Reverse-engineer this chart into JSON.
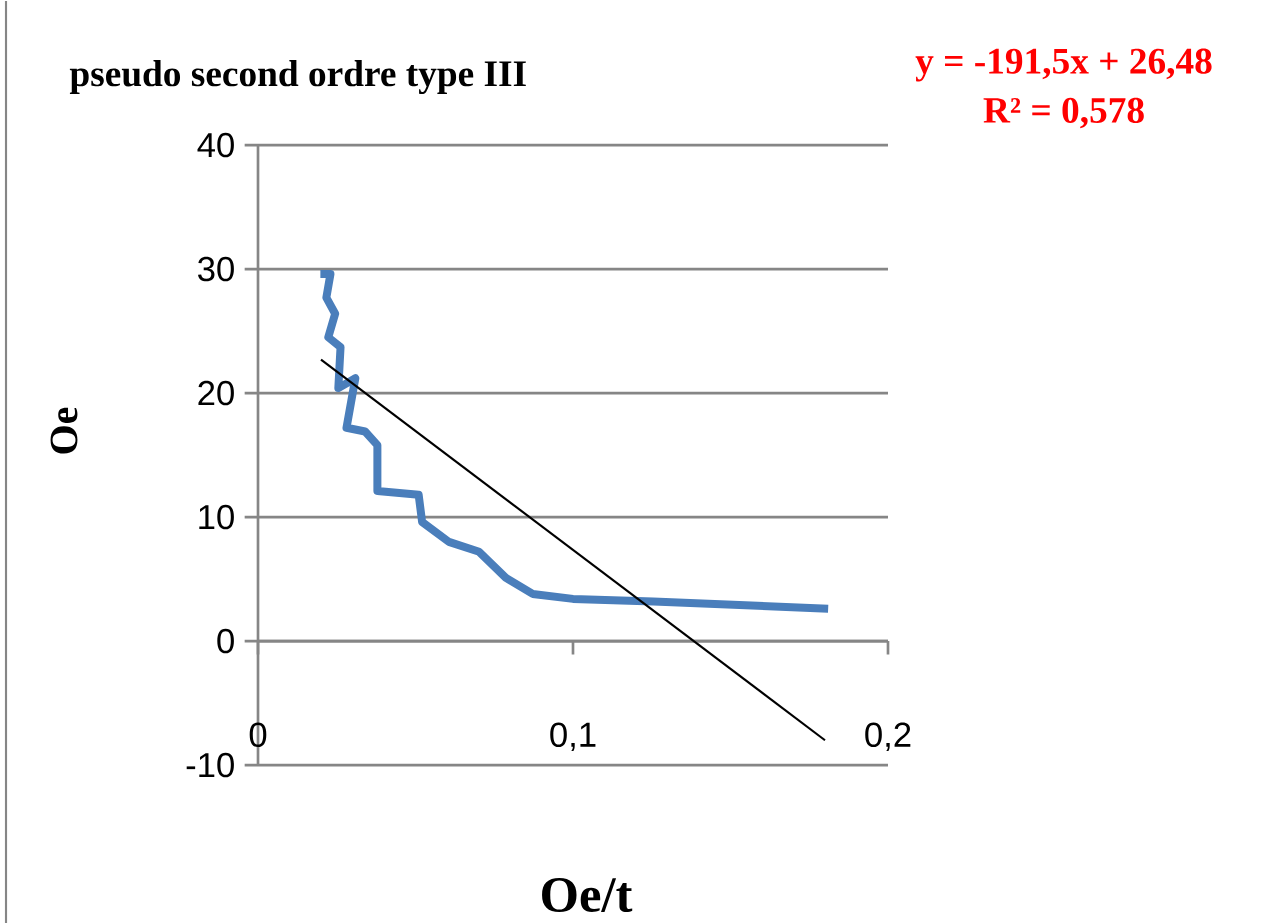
{
  "chart_data": {
    "type": "line",
    "title": "pseudo second ordre type III",
    "xlabel": "Oe/t",
    "ylabel": "Oe",
    "annotations": [
      "y = -191,5x + 26,48",
      "R² = 0,578"
    ],
    "xlim": [
      0,
      0.2
    ],
    "xticks": [
      {
        "value": 0,
        "label": "0"
      },
      {
        "value": 0.1,
        "label": "0,1"
      },
      {
        "value": 0.2,
        "label": "0,2"
      }
    ],
    "ylim": [
      -10,
      40
    ],
    "yticks": [
      -10,
      0,
      10,
      20,
      30,
      40
    ],
    "grid": "y",
    "series": [
      {
        "color": "#4a7ebb",
        "x": [
          0.0198,
          0.023,
          0.0217,
          0.0245,
          0.0223,
          0.0262,
          0.0255,
          0.0309,
          0.0281,
          0.034,
          0.0379,
          0.0379,
          0.051,
          0.0521,
          0.0606,
          0.0702,
          0.0787,
          0.0872,
          0.1,
          0.1255,
          0.181
        ],
        "values": [
          29.6,
          29.6,
          27.7,
          26.4,
          24.5,
          23.7,
          20.4,
          21.2,
          17.2,
          16.9,
          15.8,
          12.1,
          11.8,
          9.6,
          8.0,
          7.2,
          5.1,
          3.8,
          3.4,
          3.2,
          2.6
        ]
      },
      {
        "color": "#000000",
        "x": [
          0.02,
          0.18
        ],
        "values": [
          22.7,
          -8.0
        ]
      }
    ]
  }
}
